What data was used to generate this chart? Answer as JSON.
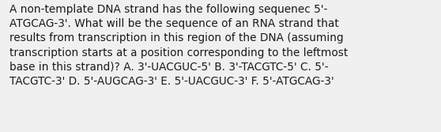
{
  "text": "A non-template DNA strand has the following sequenec 5'-\nATGCAG-3'. What will be the sequence of an RNA strand that\nresults from transcription in this region of the DNA (assuming\ntranscription starts at a position corresponding to the leftmost\nbase in this strand)? A. 3'-UACGUC-5' B. 3'-TACGTC-5' C. 5'-\nTACGTC-3' D. 5'-AUGCAG-3' E. 5'-UACGUC-3' F. 5'-ATGCAG-3'",
  "background_color": "#f0f0f0",
  "text_color": "#1a1a1a",
  "font_size": 9.8,
  "font_family": "DejaVu Sans"
}
